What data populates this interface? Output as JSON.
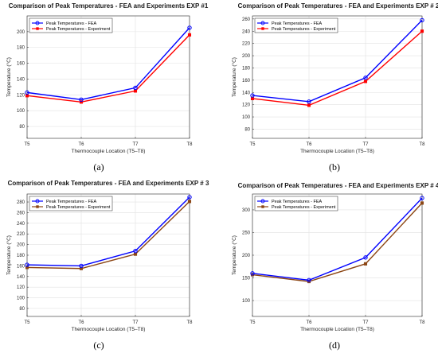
{
  "chart_data": [
    {
      "type": "line",
      "title": "Comparison of Peak Temperatures - FEA and Experiments EXP #1",
      "xlabel": "Thermocouple Location (T5–T8)",
      "ylabel": "Temperature (°C)",
      "caption": "(a)",
      "categories": [
        "T5",
        "T6",
        "T7",
        "T8"
      ],
      "ylim": [
        65,
        220
      ],
      "yticks": [
        80,
        100,
        120,
        140,
        160,
        180,
        200
      ],
      "grid": true,
      "legend": "top-left",
      "series": [
        {
          "name": "Peak Temperatures - FEA",
          "values": [
            123,
            114,
            129,
            205
          ],
          "color": "#0000ff",
          "marker": "circle"
        },
        {
          "name": "Peak Temperatures - Experiment",
          "values": [
            119,
            111,
            125,
            196
          ],
          "color": "#ff0000",
          "marker": "square"
        }
      ]
    },
    {
      "type": "line",
      "title": "Comparison of Peak Temperatures - FEA and Experiments EXP # 2",
      "xlabel": "Thermocouple Location (T5–T8)",
      "ylabel": "Temperature (°C)",
      "caption": "(b)",
      "categories": [
        "T5",
        "T6",
        "T7",
        "T8"
      ],
      "ylim": [
        65,
        265
      ],
      "yticks": [
        80,
        100,
        120,
        140,
        160,
        180,
        200,
        220,
        240,
        260
      ],
      "grid": true,
      "legend": "top-left",
      "series": [
        {
          "name": "Peak Temperatures - FEA",
          "values": [
            135,
            125,
            164,
            258
          ],
          "color": "#0000ff",
          "marker": "circle"
        },
        {
          "name": "Peak Temperatures - Experiment",
          "values": [
            130,
            119,
            158,
            240
          ],
          "color": "#ff0000",
          "marker": "square"
        }
      ]
    },
    {
      "type": "line",
      "title": "Comparison of Peak Temperatures - FEA and Experiments EXP # 3",
      "xlabel": "Thermocouple Location (T5–T8)",
      "ylabel": "Temperature (°C)",
      "caption": "(c)",
      "categories": [
        "T5",
        "T6",
        "T7",
        "T8"
      ],
      "ylim": [
        65,
        295
      ],
      "yticks": [
        80,
        100,
        120,
        140,
        160,
        180,
        200,
        220,
        240,
        260,
        280
      ],
      "grid": true,
      "legend": "top-left",
      "series": [
        {
          "name": "Peak Temperatures - FEA",
          "values": [
            162,
            160,
            188,
            289
          ],
          "color": "#0000ff",
          "marker": "circle"
        },
        {
          "name": "Peak Temperatures - Experiment",
          "values": [
            157,
            155,
            182,
            281
          ],
          "color": "#8b4513",
          "marker": "square"
        }
      ]
    },
    {
      "type": "line",
      "title": "Comparison of Peak Temperatures - FEA and Experiments EXP # 4",
      "xlabel": "Thermocouple Location (T5–T8)",
      "ylabel": "Temperature (°C)",
      "caption": "(d)",
      "categories": [
        "T5",
        "T6",
        "T7",
        "T8"
      ],
      "ylim": [
        65,
        335
      ],
      "yticks": [
        100,
        150,
        200,
        250,
        300
      ],
      "grid": true,
      "legend": "top-left",
      "series": [
        {
          "name": "Peak Temperatures - FEA",
          "values": [
            160,
            145,
            195,
            326
          ],
          "color": "#0000ff",
          "marker": "circle"
        },
        {
          "name": "Peak Temperatures - Experiment",
          "values": [
            157,
            142,
            181,
            315
          ],
          "color": "#8b4513",
          "marker": "square"
        }
      ]
    }
  ]
}
